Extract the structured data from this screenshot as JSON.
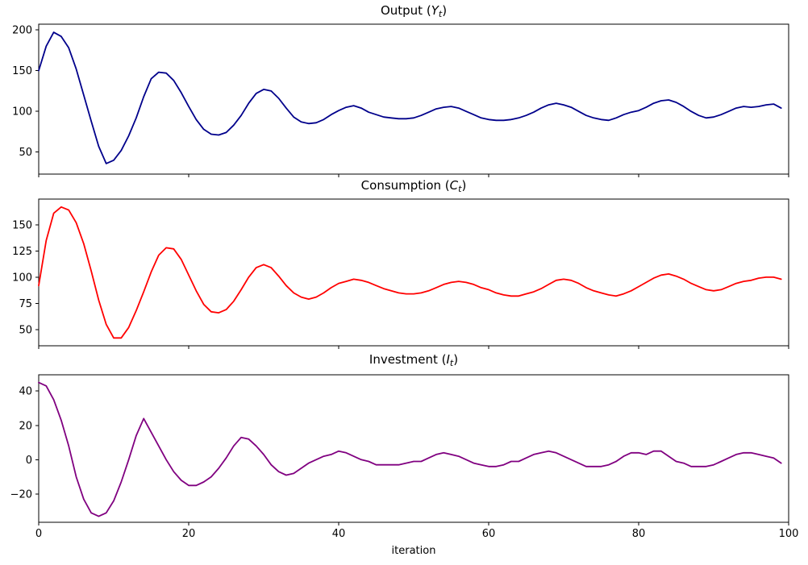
{
  "chart_data": {
    "type": "line",
    "x_label": "iteration",
    "x_range": [
      0,
      100
    ],
    "x_ticks": [
      0,
      20,
      40,
      60,
      80,
      100
    ],
    "grid": false,
    "legend": "none",
    "x": [
      0,
      1,
      2,
      3,
      4,
      5,
      6,
      7,
      8,
      9,
      10,
      11,
      12,
      13,
      14,
      15,
      16,
      17,
      18,
      19,
      20,
      21,
      22,
      23,
      24,
      25,
      26,
      27,
      28,
      29,
      30,
      31,
      32,
      33,
      34,
      35,
      36,
      37,
      38,
      39,
      40,
      41,
      42,
      43,
      44,
      45,
      46,
      47,
      48,
      49,
      50,
      51,
      52,
      53,
      54,
      55,
      56,
      57,
      58,
      59,
      60,
      61,
      62,
      63,
      64,
      65,
      66,
      67,
      68,
      69,
      70,
      71,
      72,
      73,
      74,
      75,
      76,
      77,
      78,
      79,
      80,
      81,
      82,
      83,
      84,
      85,
      86,
      87,
      88,
      89,
      90,
      91,
      92,
      93,
      94,
      95,
      96,
      97,
      98,
      99
    ],
    "subplots": [
      {
        "name": "output",
        "title": "Output (Y_t)",
        "title_parts": {
          "prefix": "Output (",
          "symbol": "Y",
          "subscript": "t",
          "suffix": ")"
        },
        "color": "#00008b",
        "y_ticks": [
          50,
          100,
          150,
          200
        ],
        "y_range": [
          23,
          207
        ],
        "values": [
          150,
          180,
          197,
          192,
          178,
          152,
          120,
          88,
          57,
          36,
          40,
          52,
          70,
          92,
          118,
          140,
          148,
          147,
          138,
          123,
          106,
          90,
          78,
          72,
          71,
          74,
          83,
          95,
          110,
          122,
          127,
          125,
          116,
          104,
          93,
          87,
          85,
          86,
          90,
          96,
          101,
          105,
          107,
          104,
          99,
          96,
          93,
          92,
          91,
          91,
          92,
          95,
          99,
          103,
          105,
          106,
          104,
          100,
          96,
          92,
          90,
          89,
          89,
          90,
          92,
          95,
          99,
          104,
          108,
          110,
          108,
          105,
          100,
          95,
          92,
          90,
          89,
          92,
          96,
          99,
          101,
          105,
          110,
          113,
          114,
          111,
          106,
          100,
          95,
          92,
          93,
          96,
          100,
          104,
          106,
          105,
          106,
          108,
          109,
          104
        ]
      },
      {
        "name": "consumption",
        "title": "Consumption (C_t)",
        "title_parts": {
          "prefix": "Consumption (",
          "symbol": "C",
          "subscript": "t",
          "suffix": ")"
        },
        "color": "#ff0000",
        "y_ticks": [
          50,
          75,
          100,
          125,
          150
        ],
        "y_range": [
          34.5,
          174.5
        ],
        "values": [
          92,
          135,
          161,
          167,
          164,
          152,
          132,
          106,
          78,
          55,
          42,
          42,
          52,
          68,
          86,
          105,
          121,
          128,
          127,
          117,
          102,
          87,
          74,
          67,
          66,
          69,
          77,
          88,
          100,
          109,
          112,
          109,
          101,
          92,
          85,
          81,
          79,
          81,
          85,
          90,
          94,
          96,
          98,
          97,
          95,
          92,
          89,
          87,
          85,
          84,
          84,
          85,
          87,
          90,
          93,
          95,
          96,
          95,
          93,
          90,
          88,
          85,
          83,
          82,
          82,
          84,
          86,
          89,
          93,
          97,
          98,
          97,
          94,
          90,
          87,
          85,
          83,
          82,
          84,
          87,
          91,
          95,
          99,
          102,
          103,
          101,
          98,
          94,
          91,
          88,
          87,
          88,
          91,
          94,
          96,
          97,
          99,
          100,
          100,
          98
        ]
      },
      {
        "name": "investment",
        "title": "Investment (I_t)",
        "title_parts": {
          "prefix": "Investment (",
          "symbol": "I",
          "subscript": "t",
          "suffix": ")"
        },
        "color": "#800080",
        "y_ticks": [
          -20,
          0,
          20,
          40
        ],
        "y_range": [
          -36.5,
          49.5
        ],
        "values": [
          45,
          43,
          35,
          23,
          8,
          -10,
          -23,
          -31,
          -33,
          -31,
          -24,
          -13,
          0,
          14,
          24,
          16,
          8,
          0,
          -7,
          -12,
          -15,
          -15,
          -13,
          -10,
          -5,
          1,
          8,
          13,
          12,
          8,
          3,
          -3,
          -7,
          -9,
          -8,
          -5,
          -2,
          0,
          2,
          3,
          5,
          4,
          2,
          0,
          -1,
          -3,
          -3,
          -3,
          -3,
          -2,
          -1,
          -1,
          1,
          3,
          4,
          3,
          2,
          0,
          -2,
          -3,
          -4,
          -4,
          -3,
          -1,
          -1,
          1,
          3,
          4,
          5,
          4,
          2,
          0,
          -2,
          -4,
          -4,
          -4,
          -3,
          -1,
          2,
          4,
          4,
          3,
          5,
          5,
          2,
          -1,
          -2,
          -4,
          -4,
          -4,
          -3,
          -1,
          1,
          3,
          4,
          4,
          3,
          2,
          1,
          -2
        ]
      }
    ]
  }
}
